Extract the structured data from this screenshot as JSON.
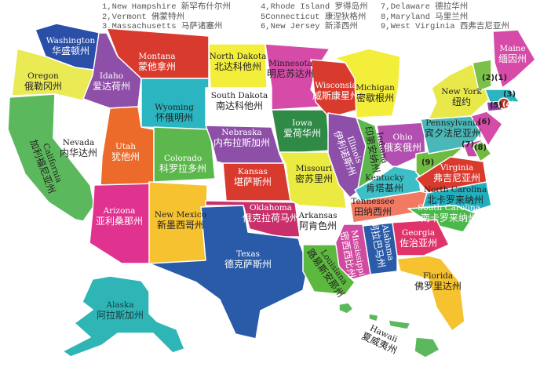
{
  "legend": [
    {
      "text": "1,New Hampshire 新罕布什尔州"
    },
    {
      "text": "2,Vermont 佛蒙特州"
    },
    {
      "text": "3,Massachusetts 马萨诸塞州"
    },
    {
      "text": "4,Rhode Island 罗得岛州"
    },
    {
      "text": "5Connecticut 康涅狄格州"
    },
    {
      "text": "6,New Jersey 新泽西州"
    },
    {
      "text": "7,Delaware 德拉华州"
    },
    {
      "text": "8,Maryland 马里兰州"
    },
    {
      "text": "9,West Virginia 西弗吉尼亚州"
    }
  ],
  "states": [
    {
      "id": "wa",
      "en": "Washington",
      "cn": "华盛顿州",
      "color": "#2a4fa8"
    },
    {
      "id": "or",
      "en": "Oregon",
      "cn": "俄勒冈州",
      "color": "#eaea55"
    },
    {
      "id": "ca",
      "en": "California",
      "cn": "加利福尼亚州",
      "color": "#5cb85c"
    },
    {
      "id": "nv",
      "en": "Nevada",
      "cn": "内华达州",
      "color": "#ffffff"
    },
    {
      "id": "id",
      "en": "Idaho",
      "cn": "爱达荷州",
      "color": "#8e4fa8"
    },
    {
      "id": "mt",
      "en": "Montana",
      "cn": "蒙他拿州",
      "color": "#d93a2e"
    },
    {
      "id": "wy",
      "en": "Wyoming",
      "cn": "怀俄明州",
      "color": "#2bb5c0"
    },
    {
      "id": "ut",
      "en": "Utah",
      "cn": "犹他州",
      "color": "#ec6b2a"
    },
    {
      "id": "co",
      "en": "Colorado",
      "cn": "科罗拉多州",
      "color": "#5cb84c"
    },
    {
      "id": "az",
      "en": "Arizona",
      "cn": "亚利桑那州",
      "color": "#e0338f"
    },
    {
      "id": "nm",
      "en": "New Mexico",
      "cn": "新墨西哥州",
      "color": "#f6c230"
    },
    {
      "id": "nd",
      "en": "North Dakota",
      "cn": "北达科他州",
      "color": "#f3ee3a"
    },
    {
      "id": "sd",
      "en": "South Dakota",
      "cn": "南达科他州",
      "color": "#ffffff"
    },
    {
      "id": "ne",
      "en": "Nebraska",
      "cn": "内布拉斯加州",
      "color": "#8e4fa8"
    },
    {
      "id": "ks",
      "en": "Kansas",
      "cn": "堪萨斯州",
      "color": "#d93a2e"
    },
    {
      "id": "ok",
      "en": "Oklahoma",
      "cn": "俄克拉荷马州",
      "color": "#c9306b"
    },
    {
      "id": "tx",
      "en": "Texas",
      "cn": "德克萨斯州",
      "color": "#2a5ba8"
    },
    {
      "id": "mn",
      "en": "Minnesota",
      "cn": "明尼苏达州",
      "color": "#d64aa8"
    },
    {
      "id": "ia",
      "en": "Iowa",
      "cn": "爱荷华州",
      "color": "#2e8a45"
    },
    {
      "id": "wi",
      "en": "Wisconsia",
      "cn": "威斯康星州",
      "color": "#d93a2e"
    },
    {
      "id": "mo",
      "en": "Missouri",
      "cn": "密苏里州",
      "color": "#eaea40"
    },
    {
      "id": "il",
      "en": "Illinois",
      "cn": "伊利诺斯州",
      "color": "#8e4fa8"
    },
    {
      "id": "mi",
      "en": "Michigan",
      "cn": "密歇根州",
      "color": "#f3ee3a"
    },
    {
      "id": "in",
      "en": "Indiana",
      "cn": "印第安纳州",
      "color": "#5cb84c"
    },
    {
      "id": "oh",
      "en": "Ohio",
      "cn": "俄亥俄州",
      "color": "#b24fb0"
    },
    {
      "id": "ky",
      "en": "Kentucky",
      "cn": "肯塔基州",
      "color": "#3cbfc6"
    },
    {
      "id": "tn",
      "en": "Tennessee",
      "cn": "田纳西州",
      "color": "#f27a63"
    },
    {
      "id": "wv",
      "en": "",
      "cn": "",
      "color": "#6fbb3f",
      "marker": "(9)"
    },
    {
      "id": "va",
      "en": "Virginia",
      "cn": "弗吉尼亚州",
      "color": "#d93a2e"
    },
    {
      "id": "nc",
      "en": "North Carolina",
      "cn": "北卡罗来纳州",
      "color": "#22aebd"
    },
    {
      "id": "sc",
      "en": "South Carolina",
      "cn": "南卡罗来纳州",
      "color": "#4cb84c"
    },
    {
      "id": "ga",
      "en": "Georgia",
      "cn": "佐治亚州",
      "color": "#e0336a"
    },
    {
      "id": "al",
      "en": "Alabama",
      "cn": "阿拉巴马州",
      "color": "#2a5ba8"
    },
    {
      "id": "ms",
      "en": "Mississippi",
      "cn": "密西西比州",
      "color": "#d04aa0"
    },
    {
      "id": "ar",
      "en": "Arkansas",
      "cn": "阿肯色州",
      "color": "#ffffff"
    },
    {
      "id": "la",
      "en": "Louisiana",
      "cn": "路易斯安那州",
      "color": "#5cb83f"
    },
    {
      "id": "fl",
      "en": "Florida",
      "cn": "佛罗里达州",
      "color": "#f6c230"
    },
    {
      "id": "pa",
      "en": "Pennsylvania",
      "cn": "宾夕法尼亚州",
      "color": "#4ab8b8"
    },
    {
      "id": "ny",
      "en": "New York",
      "cn": "纽约",
      "color": "#e8e84a"
    },
    {
      "id": "nj",
      "en": "",
      "cn": "",
      "color": "#d64aa8",
      "marker": "(6)"
    },
    {
      "id": "de",
      "en": "",
      "cn": "",
      "color": "#c54aa8",
      "marker": "(7)"
    },
    {
      "id": "md",
      "en": "",
      "cn": "",
      "color": "#6fbb3f",
      "marker": "(8)"
    },
    {
      "id": "vt",
      "en": "",
      "cn": "",
      "color": "#7cc04a",
      "marker": "(2)"
    },
    {
      "id": "nh",
      "en": "",
      "cn": "",
      "color": "#ffffff",
      "marker": "(1)"
    },
    {
      "id": "ma",
      "en": "",
      "cn": "",
      "color": "#2bb5c0",
      "marker": "(3)"
    },
    {
      "id": "ct",
      "en": "",
      "cn": "",
      "color": "#8e3fa0",
      "marker": "(5)"
    },
    {
      "id": "ri",
      "en": "",
      "cn": "",
      "color": "#c0392b",
      "marker": "(4)"
    },
    {
      "id": "me",
      "en": "Maine",
      "cn": "缅因州",
      "color": "#d64aa8"
    },
    {
      "id": "ak",
      "en": "Alaska",
      "cn": "阿拉斯加州",
      "color": "#2fb5b5"
    },
    {
      "id": "hi",
      "en": "Hawaii",
      "cn": "夏威夷州",
      "color": "#5cb85c"
    }
  ]
}
